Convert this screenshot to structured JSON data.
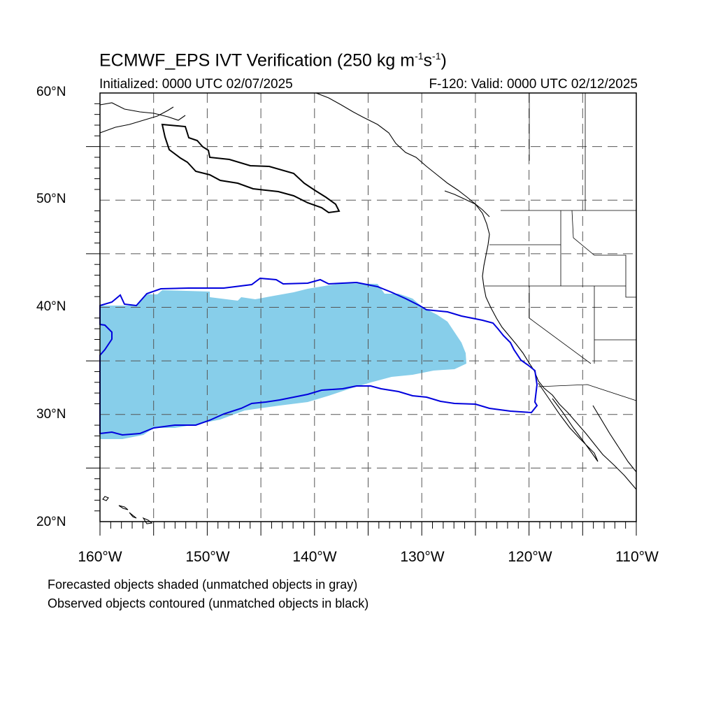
{
  "title": {
    "main": "ECMWF_EPS IVT Verification (250 kg m",
    "sup1": "-1",
    "mid": "s",
    "sup2": "-1",
    "end": ")"
  },
  "initialized": "Initialized: 0000 UTC 02/07/2025",
  "valid": "F-120: Valid: 0000 UTC 02/12/2025",
  "lat_labels": [
    "60°N",
    "50°N",
    "40°N",
    "30°N",
    "20°N"
  ],
  "lon_labels": [
    "160°W",
    "150°W",
    "140°W",
    "130°W",
    "120°W",
    "110°W"
  ],
  "notes": [
    "Forecasted objects shaded (unmatched objects in gray)",
    "Observed objects contoured (unmatched objects in black)"
  ],
  "colors": {
    "forecast_fill": "#87ceea",
    "observed_matched": "#0000dd",
    "observed_unmatched": "#000000",
    "grid": "#555555"
  },
  "map": {
    "lat_range": [
      20,
      60
    ],
    "lon_range": [
      -160,
      -110
    ],
    "grid_spacing_deg": 5,
    "projection": "cylindrical equidistant"
  }
}
